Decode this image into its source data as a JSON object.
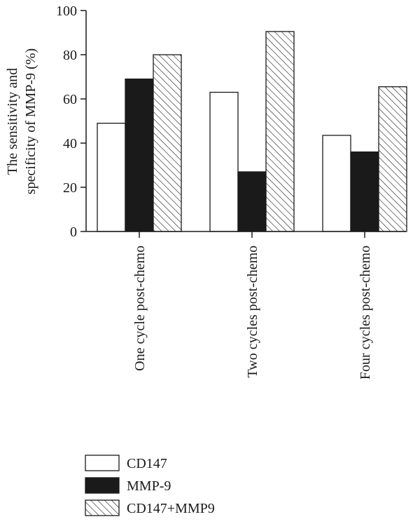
{
  "chart_data": {
    "type": "bar",
    "title": "",
    "xlabel": "",
    "ylabel_lines": [
      "The sensitivity and",
      "specificity of MMP-9 (%)"
    ],
    "ylim": [
      0,
      100
    ],
    "yticks": [
      0,
      20,
      40,
      60,
      80,
      100
    ],
    "grid": false,
    "legend_position": "bottom-left",
    "categories": [
      "One cycle post-chemo",
      "Two cycles post-chemo",
      "Four cycles post-chemo"
    ],
    "series": [
      {
        "name": "CD147",
        "values": [
          49,
          63,
          43.5
        ],
        "fill": "white"
      },
      {
        "name": "MMP-9",
        "values": [
          69,
          27,
          36
        ],
        "fill": "black"
      },
      {
        "name": "CD147+MMP9",
        "values": [
          80,
          90.5,
          65.5
        ],
        "fill": "hatched"
      }
    ],
    "colors": {
      "black": "#1a1a1a",
      "white": "#ffffff",
      "stroke": "#1a1a1a"
    }
  }
}
